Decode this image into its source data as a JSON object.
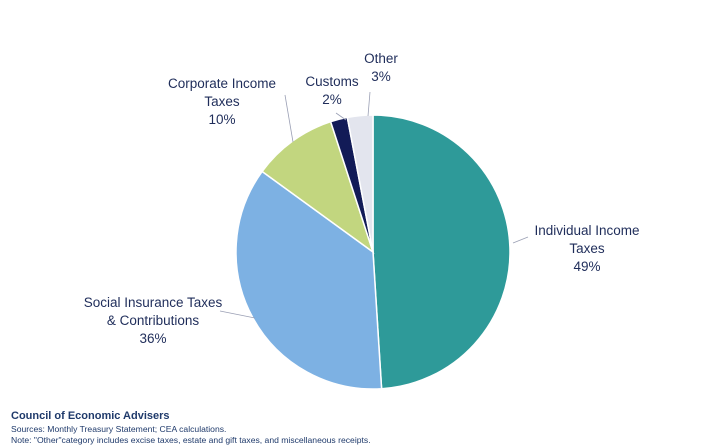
{
  "chart_data": {
    "type": "pie",
    "start_angle_deg": 0,
    "direction": "clockwise",
    "slices": [
      {
        "label_lines": [
          "Individual Income",
          "Taxes"
        ],
        "percent_label": "49%",
        "value": 49,
        "color": "#2e9a99"
      },
      {
        "label_lines": [
          "Social Insurance Taxes",
          "& Contributions"
        ],
        "percent_label": "36%",
        "value": 36,
        "color": "#7db1e3"
      },
      {
        "label_lines": [
          "Corporate Income",
          "Taxes"
        ],
        "percent_label": "10%",
        "value": 10,
        "color": "#c2d67f"
      },
      {
        "label_lines": [
          "Customs"
        ],
        "percent_label": "2%",
        "value": 2,
        "color": "#121b57"
      },
      {
        "label_lines": [
          "Other"
        ],
        "percent_label": "3%",
        "value": 3,
        "color": "#e3e5ee"
      }
    ]
  },
  "footer": {
    "org": "Council of Economic Advisers",
    "sources": "Sources: Monthly Treasury Statement; CEA calculations.",
    "note": "Note: \"Other\"category includes excise taxes, estate and gift taxes, and miscellaneous receipts."
  }
}
